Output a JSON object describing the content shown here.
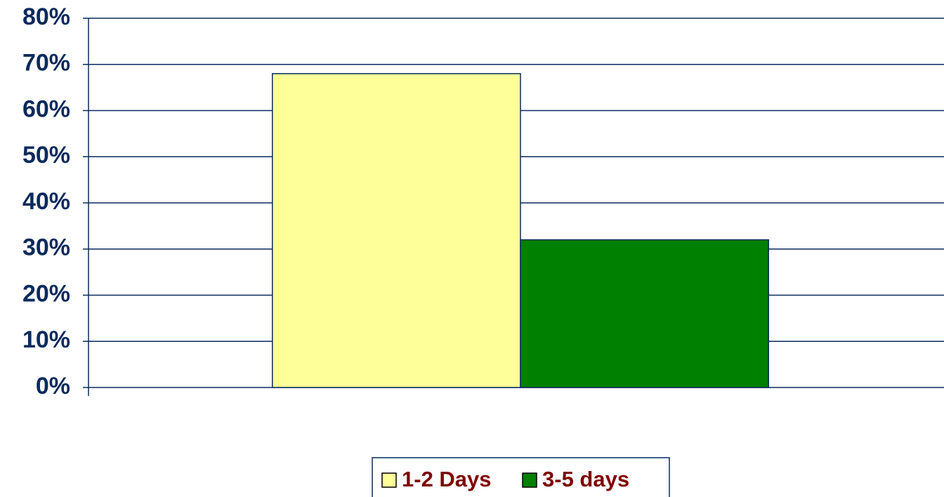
{
  "chart_data": {
    "type": "bar",
    "categories": [
      null
    ],
    "series": [
      {
        "name": "1-2 Days",
        "color": "#ffff99",
        "values": [
          68
        ]
      },
      {
        "name": "3-5 days",
        "color": "#008000",
        "values": [
          32
        ]
      }
    ],
    "ylim": [
      0,
      80
    ],
    "yticks": [
      {
        "value": 0,
        "label": "0%"
      },
      {
        "value": 10,
        "label": "10%"
      },
      {
        "value": 20,
        "label": "20%"
      },
      {
        "value": 30,
        "label": "30%"
      },
      {
        "value": 40,
        "label": "40%"
      },
      {
        "value": 50,
        "label": "50%"
      },
      {
        "value": 60,
        "label": "60%"
      },
      {
        "value": 70,
        "label": "70%"
      },
      {
        "value": 80,
        "label": "80%"
      }
    ],
    "grid": true,
    "legend": "bottom"
  }
}
